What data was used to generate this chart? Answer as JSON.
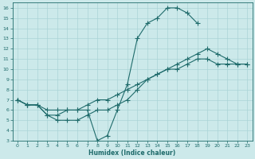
{
  "xlabel": "Humidex (Indice chaleur)",
  "xlim": [
    -0.5,
    23.5
  ],
  "ylim": [
    3,
    16.5
  ],
  "xticks": [
    0,
    1,
    2,
    3,
    4,
    5,
    6,
    7,
    8,
    9,
    10,
    11,
    12,
    13,
    14,
    15,
    16,
    17,
    18,
    19,
    20,
    21,
    22,
    23
  ],
  "yticks": [
    3,
    4,
    5,
    6,
    7,
    8,
    9,
    10,
    11,
    12,
    13,
    14,
    15,
    16
  ],
  "bg_color": "#cce9ea",
  "grid_color": "#aad4d6",
  "line_color": "#1f6b6b",
  "curve1_x": [
    0,
    1,
    2,
    3,
    4,
    5,
    6,
    7,
    8,
    9,
    10,
    11,
    12,
    13,
    14,
    15,
    16,
    17,
    18
  ],
  "curve1_y": [
    7,
    6.5,
    6.5,
    5.5,
    5.5,
    6,
    6,
    6,
    3,
    3.5,
    6,
    8.5,
    13,
    14.5,
    15,
    16,
    16,
    15.5,
    14.5
  ],
  "curve2_x": [
    0,
    1,
    2,
    3,
    4,
    5,
    6,
    7,
    8,
    9,
    10,
    11,
    12,
    13,
    14,
    15,
    16,
    17,
    18,
    19,
    20,
    21,
    22,
    23
  ],
  "curve2_y": [
    7,
    6.5,
    6.5,
    5.5,
    5,
    5,
    5,
    5.5,
    6,
    6,
    6.5,
    7,
    8,
    9,
    9.5,
    10,
    10.5,
    11,
    11.5,
    12,
    11.5,
    11,
    10.5,
    10.5
  ],
  "curve3_x": [
    0,
    1,
    2,
    3,
    4,
    5,
    6,
    7,
    8,
    9,
    10,
    11,
    12,
    13,
    14,
    15,
    16,
    17,
    18,
    19,
    20,
    21,
    22,
    23
  ],
  "curve3_y": [
    7,
    6.5,
    6.5,
    6,
    6,
    6,
    6,
    6.5,
    7,
    7,
    7.5,
    8,
    8.5,
    9,
    9.5,
    10,
    10,
    10.5,
    11,
    11,
    10.5,
    10.5,
    10.5,
    10.5
  ]
}
